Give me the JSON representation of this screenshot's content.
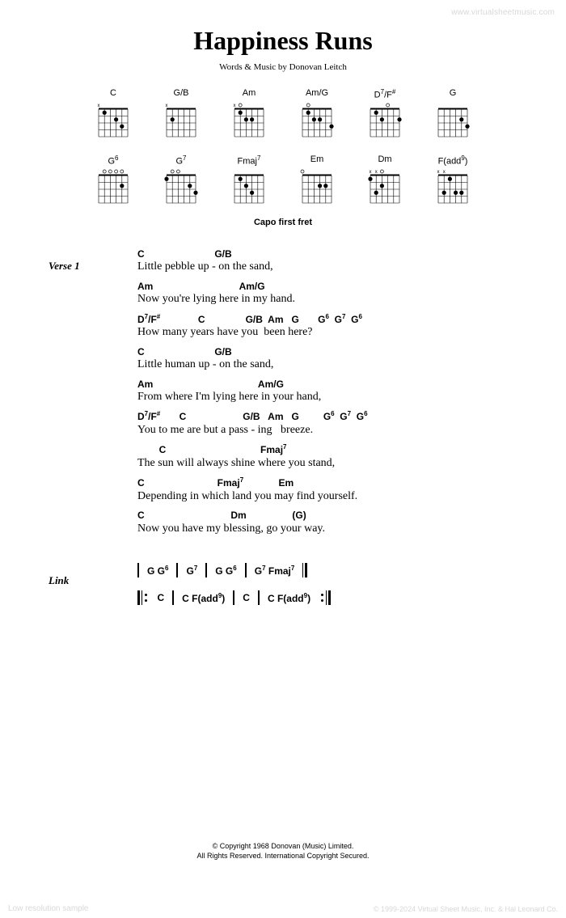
{
  "watermark_top": "www.virtualsheetmusic.com",
  "watermark_bottom": "Low resolution sample",
  "footer_copy": "© 1999-2024 Virtual Sheet Music, Inc. & Hal Leonard Co.",
  "title": "Happiness Runs",
  "credits": "Words & Music by Donovan Leitch",
  "capo": "Capo first fret",
  "chords": [
    "C",
    "G/B",
    "Am",
    "Am/G",
    "D7/F#",
    "G",
    "G6",
    "G7",
    "Fmaj7",
    "Em",
    "Dm",
    "F(add9)"
  ],
  "chord_markers": {
    "C": "x  o   o",
    "G/B": "x  o o o",
    "Am": "x o    o",
    "Am/G": "  o    o",
    "D7/F#": "   o  o",
    "G": "   o o o",
    "G6": "  o o o o",
    "G7": "  o o  o",
    "Fmaj7": " T     o",
    "Em": "o    o o o",
    "Dm": "x x o",
    "F(add9)": "x x"
  },
  "chord_dots": {
    "C": [
      [
        1,
        1
      ],
      [
        2,
        3
      ],
      [
        3,
        4
      ]
    ],
    "G/B": [
      [
        2,
        1
      ]
    ],
    "Am": [
      [
        1,
        1
      ],
      [
        2,
        2
      ],
      [
        2,
        3
      ]
    ],
    "Am/G": [
      [
        1,
        1
      ],
      [
        2,
        2
      ],
      [
        2,
        3
      ],
      [
        3,
        5
      ]
    ],
    "D7/F#": [
      [
        1,
        1
      ],
      [
        2,
        2
      ],
      [
        2,
        5
      ]
    ],
    "G": [
      [
        2,
        4
      ],
      [
        3,
        5
      ]
    ],
    "G6": [
      [
        2,
        4
      ]
    ],
    "G7": [
      [
        1,
        0
      ],
      [
        2,
        4
      ],
      [
        3,
        5
      ]
    ],
    "Fmaj7": [
      [
        1,
        1
      ],
      [
        2,
        2
      ],
      [
        3,
        3
      ]
    ],
    "Em": [
      [
        2,
        3
      ],
      [
        2,
        4
      ]
    ],
    "Dm": [
      [
        1,
        0
      ],
      [
        2,
        2
      ],
      [
        3,
        1
      ]
    ],
    "F(add9)": [
      [
        1,
        2
      ],
      [
        3,
        1
      ],
      [
        3,
        3
      ],
      [
        3,
        4
      ]
    ]
  },
  "verse1_label": "Verse 1",
  "verse1": [
    {
      "c": "C                          G/B",
      "l": "Little pebble up - on the sand,"
    },
    {
      "c": "Am                                Am/G",
      "l": "Now you're lying here in my hand."
    },
    {
      "c": "D7/F#              C               G/B  Am   G       G6  G7  G6",
      "l": "How many years have you  been here?"
    },
    {
      "c": "C                          G/B",
      "l": "Little human up - on the sand,"
    },
    {
      "c": "Am                                       Am/G",
      "l": "From where I'm lying here in your hand,"
    },
    {
      "c": "D7/F#       C                     G/B   Am   G         G6  G7  G6",
      "l": "You to me are but a pass - ing   breeze."
    },
    {
      "c": "        C                                   Fmaj7",
      "l": "The sun will always shine where you stand,"
    },
    {
      "c": "C                           Fmaj7             Em",
      "l": "Depending in which land you may find yourself."
    },
    {
      "c": "C                                Dm                 (G)",
      "l": "Now you have my blessing, go your way."
    }
  ],
  "link_label": "Link",
  "link_row1": [
    "G  G6",
    "G7",
    "G  G6",
    "G7  Fmaj7"
  ],
  "link_row2": [
    "C",
    "C  F(add9)",
    "C",
    "C  F(add9)"
  ],
  "copyright1": "© Copyright 1968 Donovan (Music) Limited.",
  "copyright2": "All Rights Reserved. International Copyright Secured."
}
